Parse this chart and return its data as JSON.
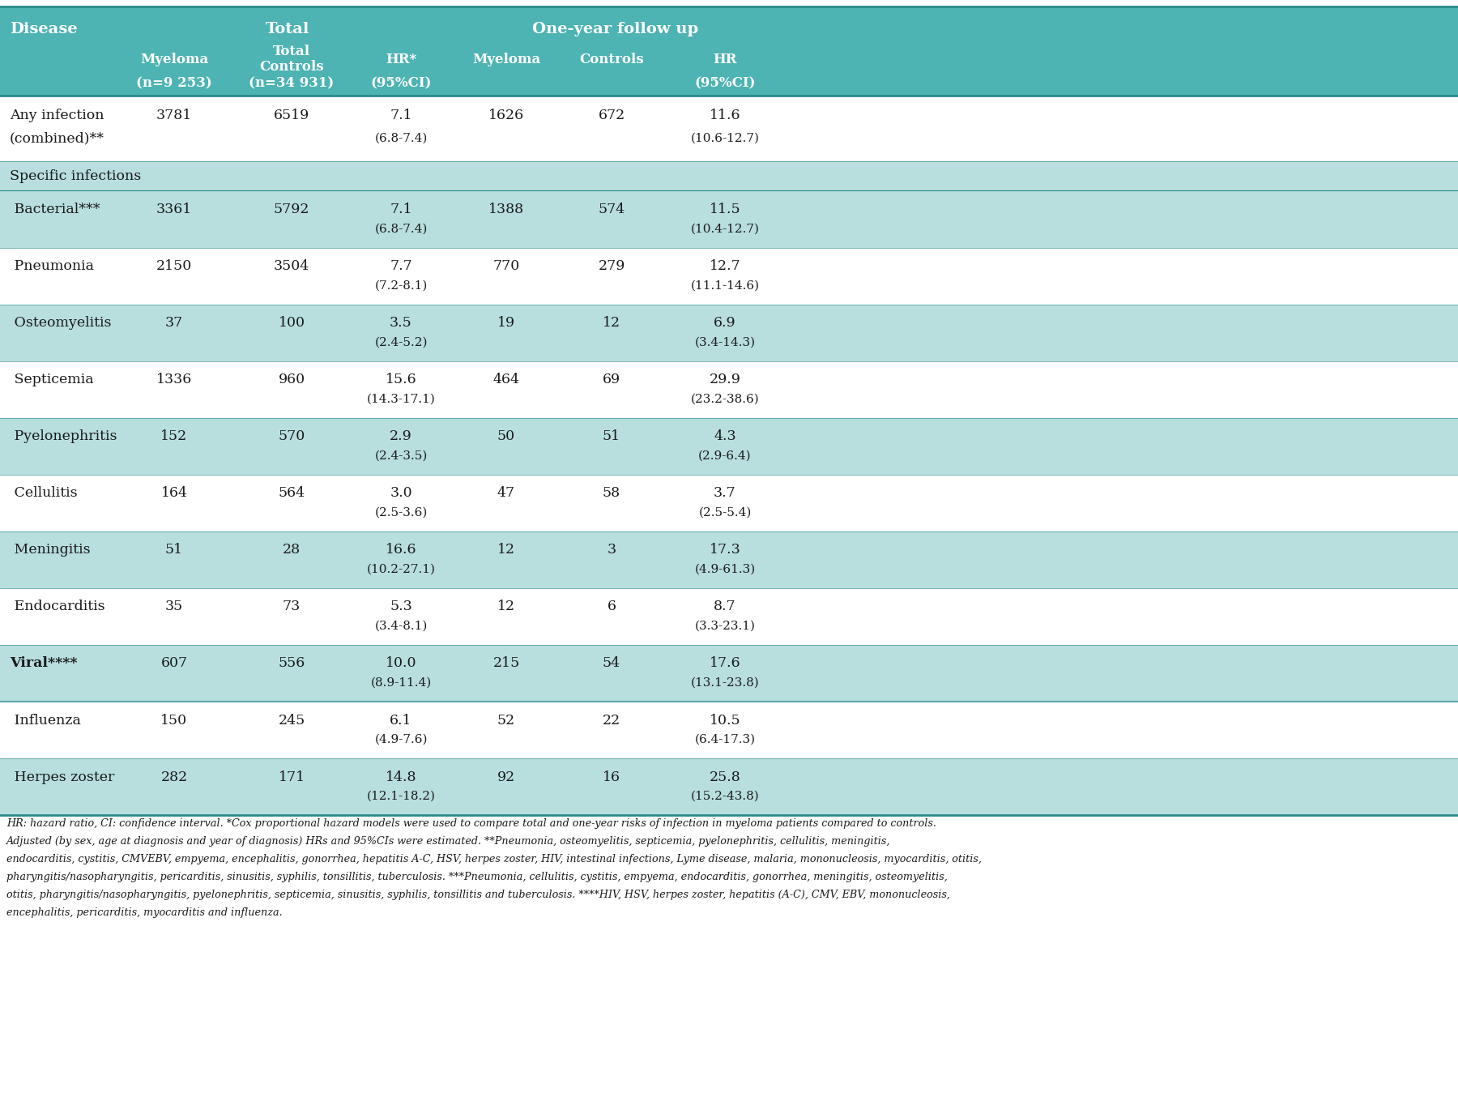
{
  "header_bg": "#4db3b3",
  "row_bg_teal": "#b8dede",
  "row_bg_white": "#ffffff",
  "section_label_bg": "#b8dede",
  "viral_bg": "#b8dede",
  "header_text_color": "#ffffff",
  "data_text_color": "#1a1a1a",
  "border_color": "#2a8a8a",
  "footnote": "HR: hazard ratio, CI: confidence interval. *Cox proportional hazard models were used to compare total and one-year risks of infection in myeloma patients compared to controls.\nAdjusted (by sex, age at diagnosis and year of diagnosis) HRs and 95%CIs were estimated. **Pneumonia, osteomyelitis, septicemia, pyelonephritis, cellulitis, meningitis,\nendocarditis, cystitis, CMVEBV, empyema, encephalitis, gonorrhea, hepatitis A-C, HSV, herpes zoster, HIV, intestinal infections, Lyme disease, malaria, mononucleosis, myocarditis, otitis,\npharyngitis/nasopharyngitis, pericarditis, sinusitis, syphilis, tonsillitis, tuberculosis. ***Pneumonia, cellulitis, cystitis, empyema, endocarditis, gonorrhea, meningitis, osteomyelitis,\notitis, pharyngitis/nasopharyngitis, pyelonephritis, septicemia, sinusitis, syphilis, tonsillitis and tuberculosis. ****HIV, HSV, herpes zoster, hepatitis (A-C), CMV, EBV, mononucleosis,\nencephalitis, pericarditis, myocarditis and influenza.",
  "rows": [
    {
      "disease": "Any infection",
      "disease2": "(combined)**",
      "myeloma": "3781",
      "controls": "6519",
      "hr": "7.1",
      "hr_ci": "(6.8-7.4)",
      "myeloma_1y": "1626",
      "controls_1y": "672",
      "hr_1y": "11.6",
      "hr_1y_ci": "(10.6-12.7)",
      "type": "data_2line",
      "bg": "#ffffff"
    },
    {
      "disease": "Specific infections",
      "disease2": "",
      "myeloma": "",
      "controls": "",
      "hr": "",
      "hr_ci": "",
      "myeloma_1y": "",
      "controls_1y": "",
      "hr_1y": "",
      "hr_1y_ci": "",
      "type": "section_label",
      "bg": "#b8dede"
    },
    {
      "disease": " Bacterial***",
      "disease2": "",
      "myeloma": "3361",
      "controls": "5792",
      "hr": "7.1",
      "hr_ci": "(6.8-7.4)",
      "myeloma_1y": "1388",
      "controls_1y": "574",
      "hr_1y": "11.5",
      "hr_1y_ci": "(10.4-12.7)",
      "type": "data",
      "bg": "#b8dede"
    },
    {
      "disease": " Pneumonia",
      "disease2": "",
      "myeloma": "2150",
      "controls": "3504",
      "hr": "7.7",
      "hr_ci": "(7.2-8.1)",
      "myeloma_1y": "770",
      "controls_1y": "279",
      "hr_1y": "12.7",
      "hr_1y_ci": "(11.1-14.6)",
      "type": "data",
      "bg": "#ffffff"
    },
    {
      "disease": " Osteomyelitis",
      "disease2": "",
      "myeloma": "37",
      "controls": "100",
      "hr": "3.5",
      "hr_ci": "(2.4-5.2)",
      "myeloma_1y": "19",
      "controls_1y": "12",
      "hr_1y": "6.9",
      "hr_1y_ci": "(3.4-14.3)",
      "type": "data",
      "bg": "#b8dede"
    },
    {
      "disease": " Septicemia",
      "disease2": "",
      "myeloma": "1336",
      "controls": "960",
      "hr": "15.6",
      "hr_ci": "(14.3-17.1)",
      "myeloma_1y": "464",
      "controls_1y": "69",
      "hr_1y": "29.9",
      "hr_1y_ci": "(23.2-38.6)",
      "type": "data",
      "bg": "#ffffff"
    },
    {
      "disease": " Pyelonephritis",
      "disease2": "",
      "myeloma": "152",
      "controls": "570",
      "hr": "2.9",
      "hr_ci": "(2.4-3.5)",
      "myeloma_1y": "50",
      "controls_1y": "51",
      "hr_1y": "4.3",
      "hr_1y_ci": "(2.9-6.4)",
      "type": "data",
      "bg": "#b8dede"
    },
    {
      "disease": " Cellulitis",
      "disease2": "",
      "myeloma": "164",
      "controls": "564",
      "hr": "3.0",
      "hr_ci": "(2.5-3.6)",
      "myeloma_1y": "47",
      "controls_1y": "58",
      "hr_1y": "3.7",
      "hr_1y_ci": "(2.5-5.4)",
      "type": "data",
      "bg": "#ffffff"
    },
    {
      "disease": " Meningitis",
      "disease2": "",
      "myeloma": "51",
      "controls": "28",
      "hr": "16.6",
      "hr_ci": "(10.2-27.1)",
      "myeloma_1y": "12",
      "controls_1y": "3",
      "hr_1y": "17.3",
      "hr_1y_ci": "(4.9-61.3)",
      "type": "data",
      "bg": "#b8dede"
    },
    {
      "disease": " Endocarditis",
      "disease2": "",
      "myeloma": "35",
      "controls": "73",
      "hr": "5.3",
      "hr_ci": "(3.4-8.1)",
      "myeloma_1y": "12",
      "controls_1y": "6",
      "hr_1y": "8.7",
      "hr_1y_ci": "(3.3-23.1)",
      "type": "data",
      "bg": "#ffffff"
    },
    {
      "disease": "Viral****",
      "disease2": "",
      "myeloma": "607",
      "controls": "556",
      "hr": "10.0",
      "hr_ci": "(8.9-11.4)",
      "myeloma_1y": "215",
      "controls_1y": "54",
      "hr_1y": "17.6",
      "hr_1y_ci": "(13.1-23.8)",
      "type": "section_header2",
      "bg": "#b8dede"
    },
    {
      "disease": " Influenza",
      "disease2": "",
      "myeloma": "150",
      "controls": "245",
      "hr": "6.1",
      "hr_ci": "(4.9-7.6)",
      "myeloma_1y": "52",
      "controls_1y": "22",
      "hr_1y": "10.5",
      "hr_1y_ci": "(6.4-17.3)",
      "type": "data",
      "bg": "#ffffff"
    },
    {
      "disease": " Herpes zoster",
      "disease2": "",
      "myeloma": "282",
      "controls": "171",
      "hr": "14.8",
      "hr_ci": "(12.1-18.2)",
      "myeloma_1y": "92",
      "controls_1y": "16",
      "hr_1y": "25.8",
      "hr_1y_ci": "(15.2-43.8)",
      "type": "data",
      "bg": "#b8dede"
    }
  ]
}
